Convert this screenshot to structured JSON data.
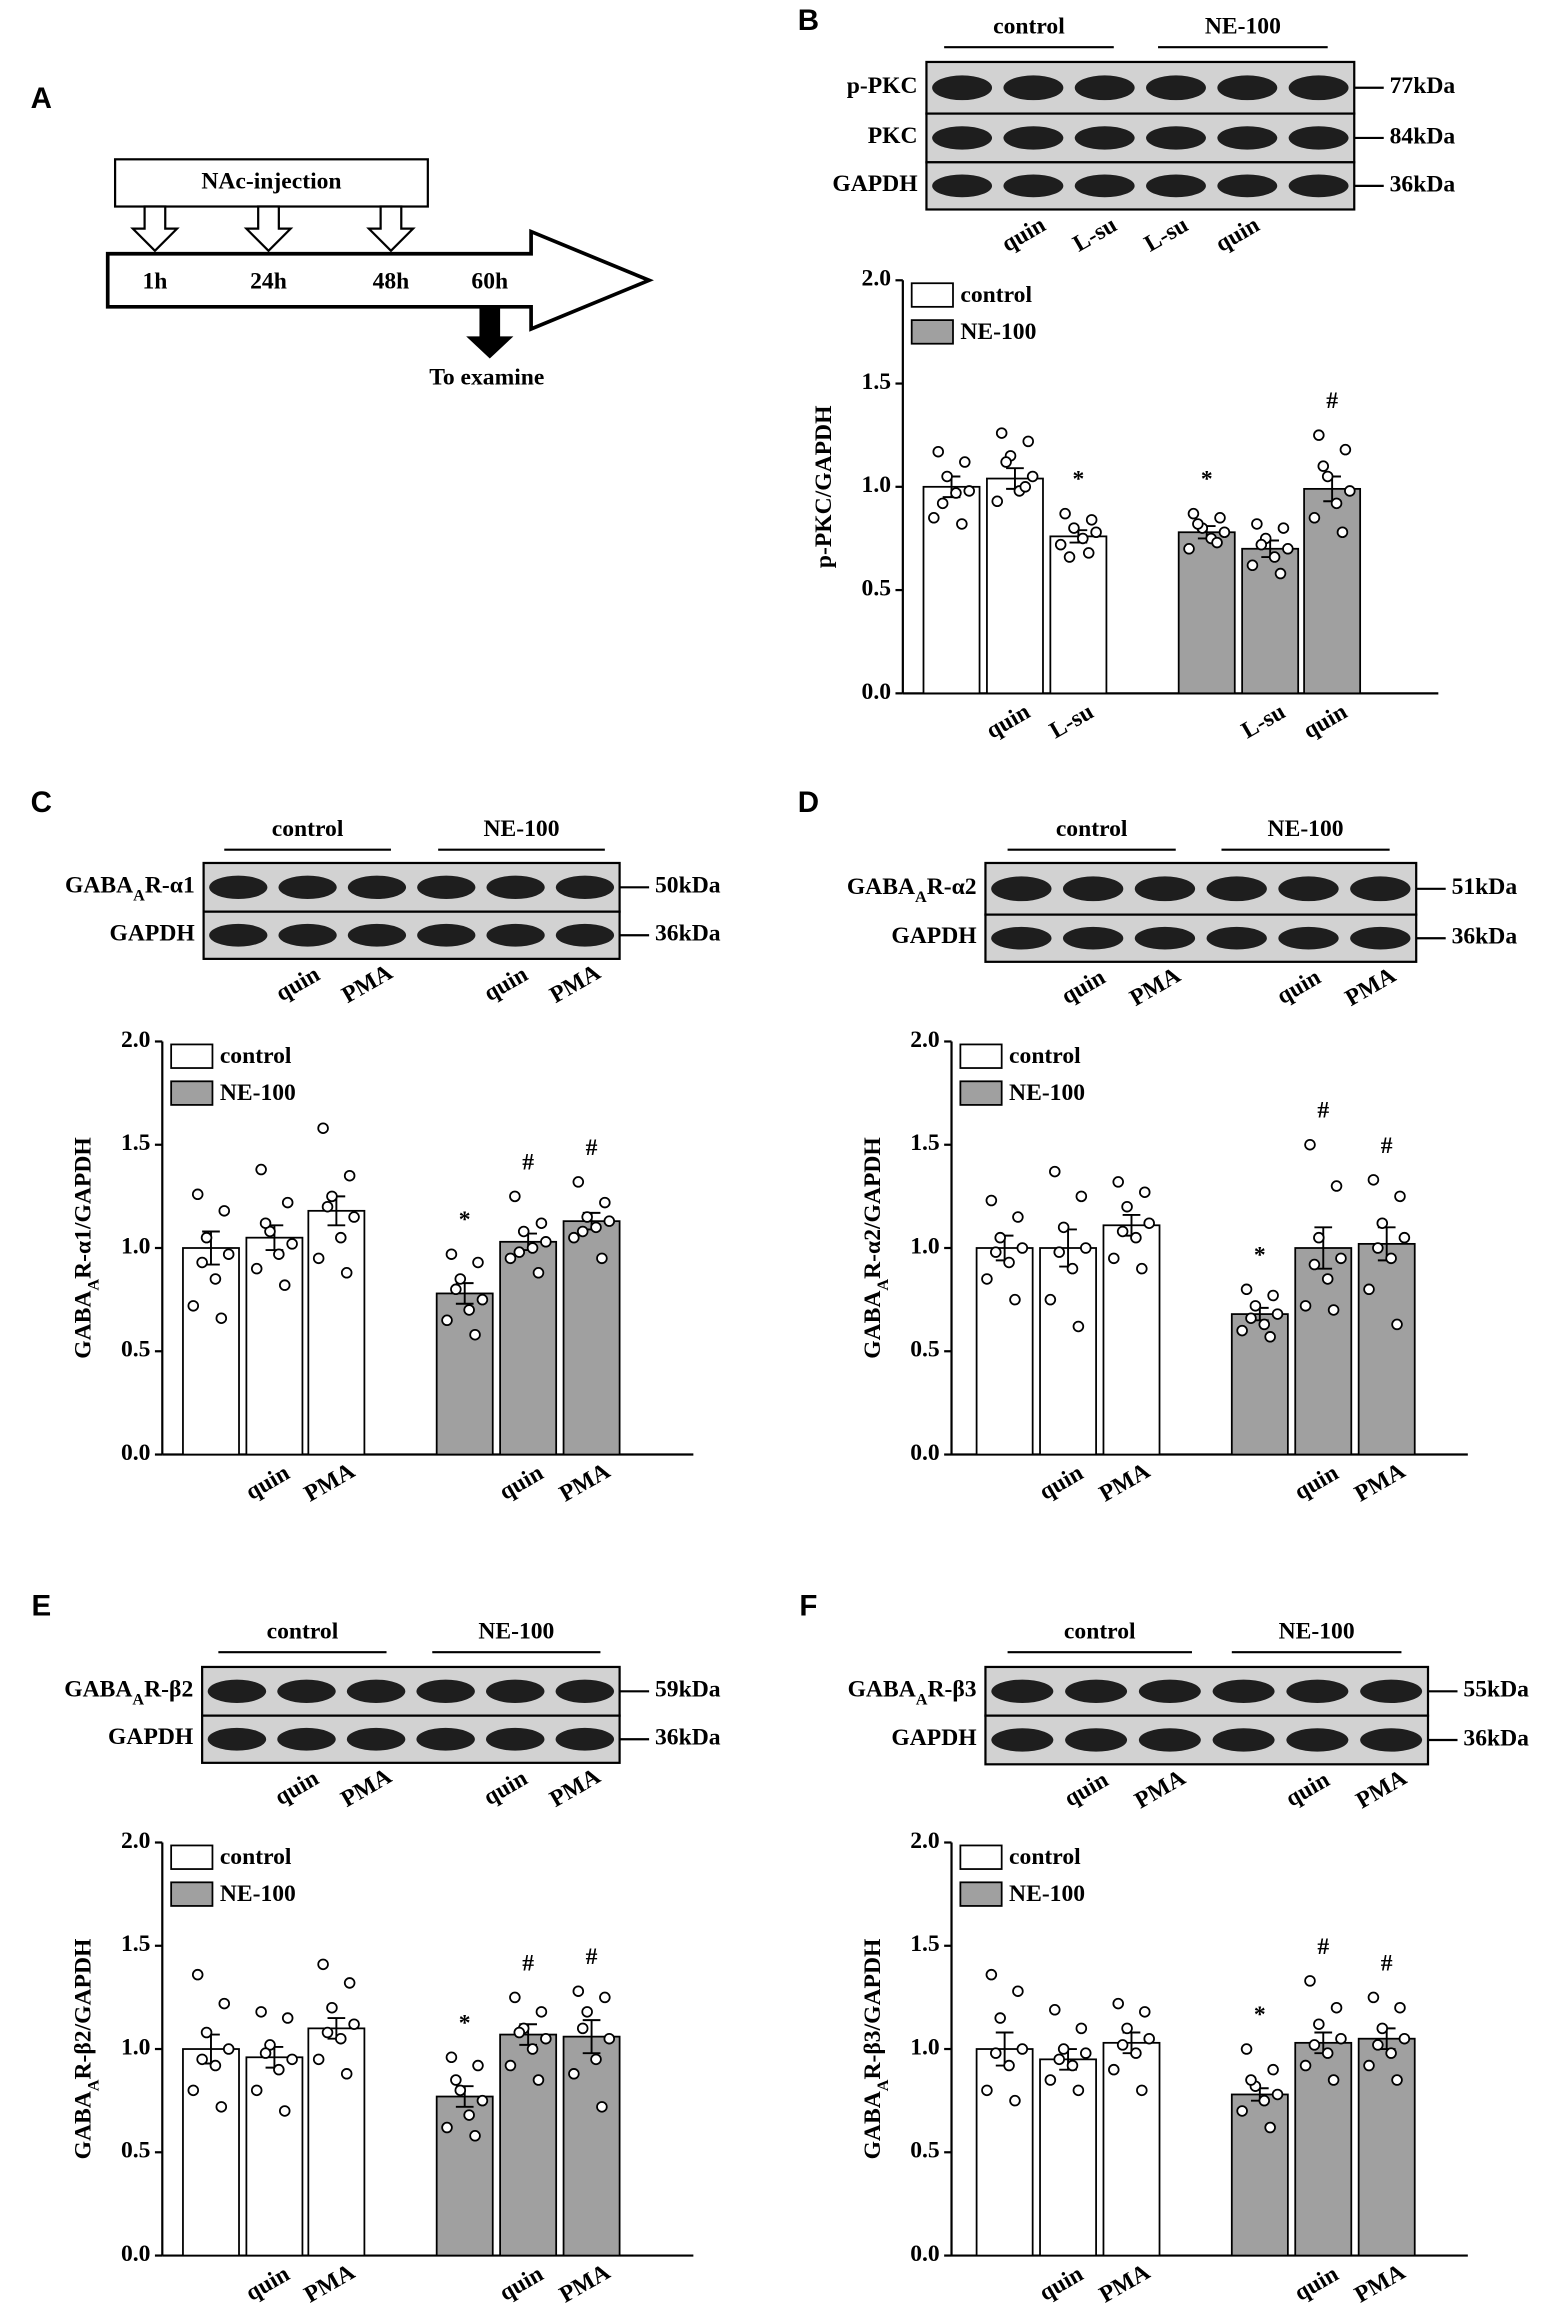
{
  "panel_labels": [
    "A",
    "B",
    "C",
    "D",
    "E",
    "F"
  ],
  "schematic": {
    "box": "NAc-injection",
    "times": [
      "1h",
      "24h",
      "48h",
      "60h"
    ],
    "note": "To examine"
  },
  "blots": [
    {
      "groups": [
        "control",
        "NE-100"
      ],
      "rows": [
        [
          "p-PKC"
        ],
        [
          "PKC"
        ],
        [
          "GAPDH"
        ]
      ],
      "sizes": [
        "77kDa",
        "84kDa",
        "36kDa"
      ],
      "lanes": [
        null,
        "quin",
        "L-su",
        "L-su",
        "quin",
        null
      ]
    },
    {
      "groups": [
        "control",
        "NE-100"
      ],
      "rows": [
        [
          "GABA",
          "A",
          "R-α1"
        ],
        [
          "GAPDH"
        ]
      ],
      "sizes": [
        "50kDa",
        "36kDa"
      ],
      "lanes": [
        null,
        "quin",
        "PMA",
        null,
        "quin",
        "PMA"
      ]
    },
    {
      "groups": [
        "control",
        "NE-100"
      ],
      "rows": [
        [
          "GABA",
          "A",
          "R-α2"
        ],
        [
          "GAPDH"
        ]
      ],
      "sizes": [
        "51kDa",
        "36kDa"
      ],
      "lanes": [
        null,
        "quin",
        "PMA",
        null,
        "quin",
        "PMA"
      ]
    },
    {
      "groups": [
        "control",
        "NE-100"
      ],
      "rows": [
        [
          "GABA",
          "A",
          "R-β2"
        ],
        [
          "GAPDH"
        ]
      ],
      "sizes": [
        "59kDa",
        "36kDa"
      ],
      "lanes": [
        null,
        "quin",
        "PMA",
        null,
        "quin",
        "PMA"
      ]
    },
    {
      "groups": [
        "control",
        "NE-100"
      ],
      "rows": [
        [
          "GABA",
          "A",
          "R-β3"
        ],
        [
          "GAPDH"
        ]
      ],
      "sizes": [
        "55kDa",
        "36kDa"
      ],
      "lanes": [
        null,
        "quin",
        "PMA",
        null,
        "quin",
        "PMA"
      ]
    }
  ],
  "chart_data": [
    {
      "type": "bar",
      "ylabel": [
        "p-PKC/GAPDH"
      ],
      "categories": [
        null,
        "quin",
        "L-su",
        null,
        "L-su",
        "quin"
      ],
      "ylim": [
        0,
        2
      ],
      "yticks": [
        {
          "value": 0,
          "label": "0.0"
        },
        {
          "value": 0.5,
          "label": "0.5"
        },
        {
          "value": 1,
          "label": "1.0"
        },
        {
          "value": 1.5,
          "label": "1.5"
        },
        {
          "value": 2,
          "label": "2.0"
        }
      ],
      "legend": "upper left",
      "annotations": [
        null,
        null,
        "*",
        "*",
        null,
        "#"
      ],
      "series": [
        {
          "name": "control",
          "color": "#ffffff",
          "values": [
            1.0,
            1.04,
            0.76,
            null,
            null,
            null
          ],
          "errors": [
            0.05,
            0.05,
            0.03,
            null,
            null,
            null
          ],
          "points": [
            [
              1.17,
              1.12,
              1.05,
              0.98,
              0.97,
              0.85,
              0.82,
              0.92
            ],
            [
              1.26,
              1.22,
              1.15,
              1.05,
              0.98,
              0.93,
              1.0,
              1.12
            ],
            [
              0.87,
              0.84,
              0.8,
              0.78,
              0.75,
              0.72,
              0.68,
              0.66
            ],
            null,
            null,
            null
          ]
        },
        {
          "name": "NE-100",
          "color": "#a0a0a0",
          "values": [
            null,
            null,
            null,
            0.78,
            0.7,
            0.99
          ],
          "errors": [
            null,
            null,
            null,
            0.03,
            0.04,
            0.06
          ],
          "points": [
            null,
            null,
            null,
            [
              0.87,
              0.85,
              0.8,
              0.78,
              0.75,
              0.7,
              0.73,
              0.82
            ],
            [
              0.82,
              0.8,
              0.75,
              0.7,
              0.66,
              0.62,
              0.58,
              0.72
            ],
            [
              1.25,
              1.18,
              1.05,
              0.98,
              0.92,
              0.85,
              0.78,
              1.1
            ]
          ]
        }
      ]
    },
    {
      "type": "bar",
      "ylabel": [
        "GABA",
        "A",
        "R-α1/GAPDH"
      ],
      "categories": [
        null,
        "quin",
        "PMA",
        null,
        "quin",
        "PMA"
      ],
      "ylim": [
        0,
        2
      ],
      "yticks": [
        {
          "value": 0,
          "label": "0.0"
        },
        {
          "value": 0.5,
          "label": "0.5"
        },
        {
          "value": 1,
          "label": "1.0"
        },
        {
          "value": 1.5,
          "label": "1.5"
        },
        {
          "value": 2,
          "label": "2.0"
        }
      ],
      "legend": "upper left",
      "annotations": [
        null,
        null,
        null,
        "*",
        "#",
        "#"
      ],
      "series": [
        {
          "name": "control",
          "color": "#ffffff",
          "values": [
            1.0,
            1.05,
            1.18,
            null,
            null,
            null
          ],
          "errors": [
            0.08,
            0.06,
            0.07,
            null,
            null,
            null
          ],
          "points": [
            [
              1.26,
              1.18,
              1.05,
              0.97,
              0.85,
              0.72,
              0.66,
              0.93
            ],
            [
              1.38,
              1.22,
              1.08,
              1.02,
              0.97,
              0.9,
              0.82,
              1.12
            ],
            [
              1.58,
              1.35,
              1.25,
              1.15,
              1.05,
              0.95,
              0.88,
              1.2
            ],
            null,
            null,
            null
          ]
        },
        {
          "name": "NE-100",
          "color": "#a0a0a0",
          "values": [
            null,
            null,
            null,
            0.78,
            1.03,
            1.13
          ],
          "errors": [
            null,
            null,
            null,
            0.05,
            0.04,
            0.04
          ],
          "points": [
            null,
            null,
            null,
            [
              0.97,
              0.93,
              0.85,
              0.75,
              0.7,
              0.65,
              0.58,
              0.8
            ],
            [
              1.25,
              1.12,
              1.08,
              1.03,
              1.0,
              0.95,
              0.88,
              0.98
            ],
            [
              1.32,
              1.22,
              1.15,
              1.13,
              1.1,
              1.05,
              0.95,
              1.08
            ]
          ]
        }
      ]
    },
    {
      "type": "bar",
      "ylabel": [
        "GABA",
        "A",
        "R-α2/GAPDH"
      ],
      "categories": [
        null,
        "quin",
        "PMA",
        null,
        "quin",
        "PMA"
      ],
      "ylim": [
        0,
        2
      ],
      "yticks": [
        {
          "value": 0,
          "label": "0.0"
        },
        {
          "value": 0.5,
          "label": "0.5"
        },
        {
          "value": 1,
          "label": "1.0"
        },
        {
          "value": 1.5,
          "label": "1.5"
        },
        {
          "value": 2,
          "label": "2.0"
        }
      ],
      "legend": "upper left",
      "annotations": [
        null,
        null,
        null,
        "*",
        "#",
        "#"
      ],
      "series": [
        {
          "name": "control",
          "color": "#ffffff",
          "values": [
            1.0,
            1.0,
            1.11,
            null,
            null,
            null
          ],
          "errors": [
            0.06,
            0.09,
            0.05,
            null,
            null,
            null
          ],
          "points": [
            [
              1.23,
              1.15,
              1.05,
              1.0,
              0.93,
              0.85,
              0.75,
              0.98
            ],
            [
              1.37,
              1.25,
              1.1,
              1.0,
              0.9,
              0.75,
              0.62,
              0.98
            ],
            [
              1.32,
              1.27,
              1.2,
              1.12,
              1.05,
              0.95,
              0.9,
              1.08
            ],
            null,
            null,
            null
          ]
        },
        {
          "name": "NE-100",
          "color": "#a0a0a0",
          "values": [
            null,
            null,
            null,
            0.68,
            1.0,
            1.02
          ],
          "errors": [
            null,
            null,
            null,
            0.03,
            0.1,
            0.08
          ],
          "points": [
            null,
            null,
            null,
            [
              0.8,
              0.77,
              0.72,
              0.68,
              0.63,
              0.6,
              0.57,
              0.66
            ],
            [
              1.5,
              1.3,
              1.05,
              0.95,
              0.85,
              0.72,
              0.7,
              0.92
            ],
            [
              1.33,
              1.25,
              1.12,
              1.05,
              0.95,
              0.8,
              0.63,
              1.0
            ]
          ]
        }
      ]
    },
    {
      "type": "bar",
      "ylabel": [
        "GABA",
        "A",
        "R-β2/GAPDH"
      ],
      "categories": [
        null,
        "quin",
        "PMA",
        null,
        "quin",
        "PMA"
      ],
      "ylim": [
        0,
        2
      ],
      "yticks": [
        {
          "value": 0,
          "label": "0.0"
        },
        {
          "value": 0.5,
          "label": "0.5"
        },
        {
          "value": 1,
          "label": "1.0"
        },
        {
          "value": 1.5,
          "label": "1.5"
        },
        {
          "value": 2,
          "label": "2.0"
        }
      ],
      "legend": "upper left",
      "annotations": [
        null,
        null,
        null,
        "*",
        "#",
        "#"
      ],
      "series": [
        {
          "name": "control",
          "color": "#ffffff",
          "values": [
            1.0,
            0.96,
            1.1,
            null,
            null,
            null
          ],
          "errors": [
            0.07,
            0.05,
            0.05,
            null,
            null,
            null
          ],
          "points": [
            [
              1.36,
              1.22,
              1.08,
              1.0,
              0.92,
              0.8,
              0.72,
              0.95
            ],
            [
              1.18,
              1.15,
              1.02,
              0.95,
              0.9,
              0.8,
              0.7,
              0.98
            ],
            [
              1.41,
              1.32,
              1.2,
              1.12,
              1.05,
              0.95,
              0.88,
              1.08
            ],
            null,
            null,
            null
          ]
        },
        {
          "name": "NE-100",
          "color": "#a0a0a0",
          "values": [
            null,
            null,
            null,
            0.77,
            1.07,
            1.06
          ],
          "errors": [
            null,
            null,
            null,
            0.05,
            0.05,
            0.08
          ],
          "points": [
            null,
            null,
            null,
            [
              0.96,
              0.92,
              0.8,
              0.75,
              0.68,
              0.62,
              0.58,
              0.85
            ],
            [
              1.25,
              1.18,
              1.1,
              1.05,
              1.0,
              0.92,
              0.85,
              1.08
            ],
            [
              1.28,
              1.25,
              1.18,
              1.05,
              0.95,
              0.88,
              0.72,
              1.1
            ]
          ]
        }
      ]
    },
    {
      "type": "bar",
      "ylabel": [
        "GABA",
        "A",
        "R-β3/GAPDH"
      ],
      "categories": [
        null,
        "quin",
        "PMA",
        null,
        "quin",
        "PMA"
      ],
      "ylim": [
        0,
        2
      ],
      "yticks": [
        {
          "value": 0,
          "label": "0.0"
        },
        {
          "value": 0.5,
          "label": "0.5"
        },
        {
          "value": 1,
          "label": "1.0"
        },
        {
          "value": 1.5,
          "label": "1.5"
        },
        {
          "value": 2,
          "label": "2.0"
        }
      ],
      "legend": "upper left",
      "annotations": [
        null,
        null,
        null,
        "*",
        "#",
        "#"
      ],
      "series": [
        {
          "name": "control",
          "color": "#ffffff",
          "values": [
            1.0,
            0.95,
            1.03,
            null,
            null,
            null
          ],
          "errors": [
            0.08,
            0.05,
            0.05,
            null,
            null,
            null
          ],
          "points": [
            [
              1.36,
              1.28,
              1.15,
              1.0,
              0.92,
              0.8,
              0.75,
              0.98
            ],
            [
              1.19,
              1.1,
              1.0,
              0.98,
              0.92,
              0.85,
              0.8,
              0.95
            ],
            [
              1.22,
              1.18,
              1.1,
              1.05,
              0.98,
              0.9,
              0.8,
              1.02
            ],
            null,
            null,
            null
          ]
        },
        {
          "name": "NE-100",
          "color": "#a0a0a0",
          "values": [
            null,
            null,
            null,
            0.78,
            1.03,
            1.05
          ],
          "errors": [
            null,
            null,
            null,
            0.03,
            0.05,
            0.05
          ],
          "points": [
            null,
            null,
            null,
            [
              1.0,
              0.9,
              0.82,
              0.78,
              0.75,
              0.7,
              0.62,
              0.85
            ],
            [
              1.33,
              1.2,
              1.12,
              1.05,
              0.98,
              0.92,
              0.85,
              1.02
            ],
            [
              1.25,
              1.2,
              1.1,
              1.05,
              0.98,
              0.92,
              0.85,
              1.02
            ]
          ]
        }
      ]
    }
  ]
}
